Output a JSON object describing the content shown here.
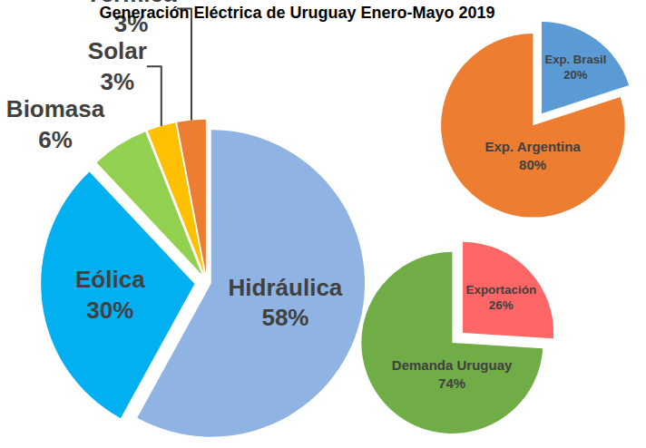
{
  "chart_data": [
    {
      "type": "pie",
      "title": "Generación Eléctrica de Uruguay Enero-Mayo 2019",
      "categories": [
        "Hidráulica",
        "Eólica",
        "Biomasa",
        "Solar",
        "Térmica"
      ],
      "values": [
        58,
        30,
        6,
        3,
        3
      ],
      "value_labels": [
        "58%",
        "30%",
        "6%",
        "3%",
        "3%"
      ],
      "colors": [
        "#8fb4e3",
        "#00b0f0",
        "#92d050",
        "#ffc000",
        "#ed7d31"
      ],
      "data_labels": true
    },
    {
      "type": "pie",
      "categories": [
        "Exportación",
        "Demanda Uruguay"
      ],
      "values": [
        26,
        74
      ],
      "value_labels": [
        "26%",
        "74%"
      ],
      "colors": [
        "#ff6666",
        "#70ad47"
      ],
      "data_labels": true
    },
    {
      "type": "pie",
      "categories": [
        "Exp. Brasil",
        "Exp. Argentina"
      ],
      "values": [
        20,
        80
      ],
      "value_labels": [
        "20%",
        "80%"
      ],
      "colors": [
        "#5b9bd5",
        "#ed7d31"
      ],
      "data_labels": true
    }
  ]
}
